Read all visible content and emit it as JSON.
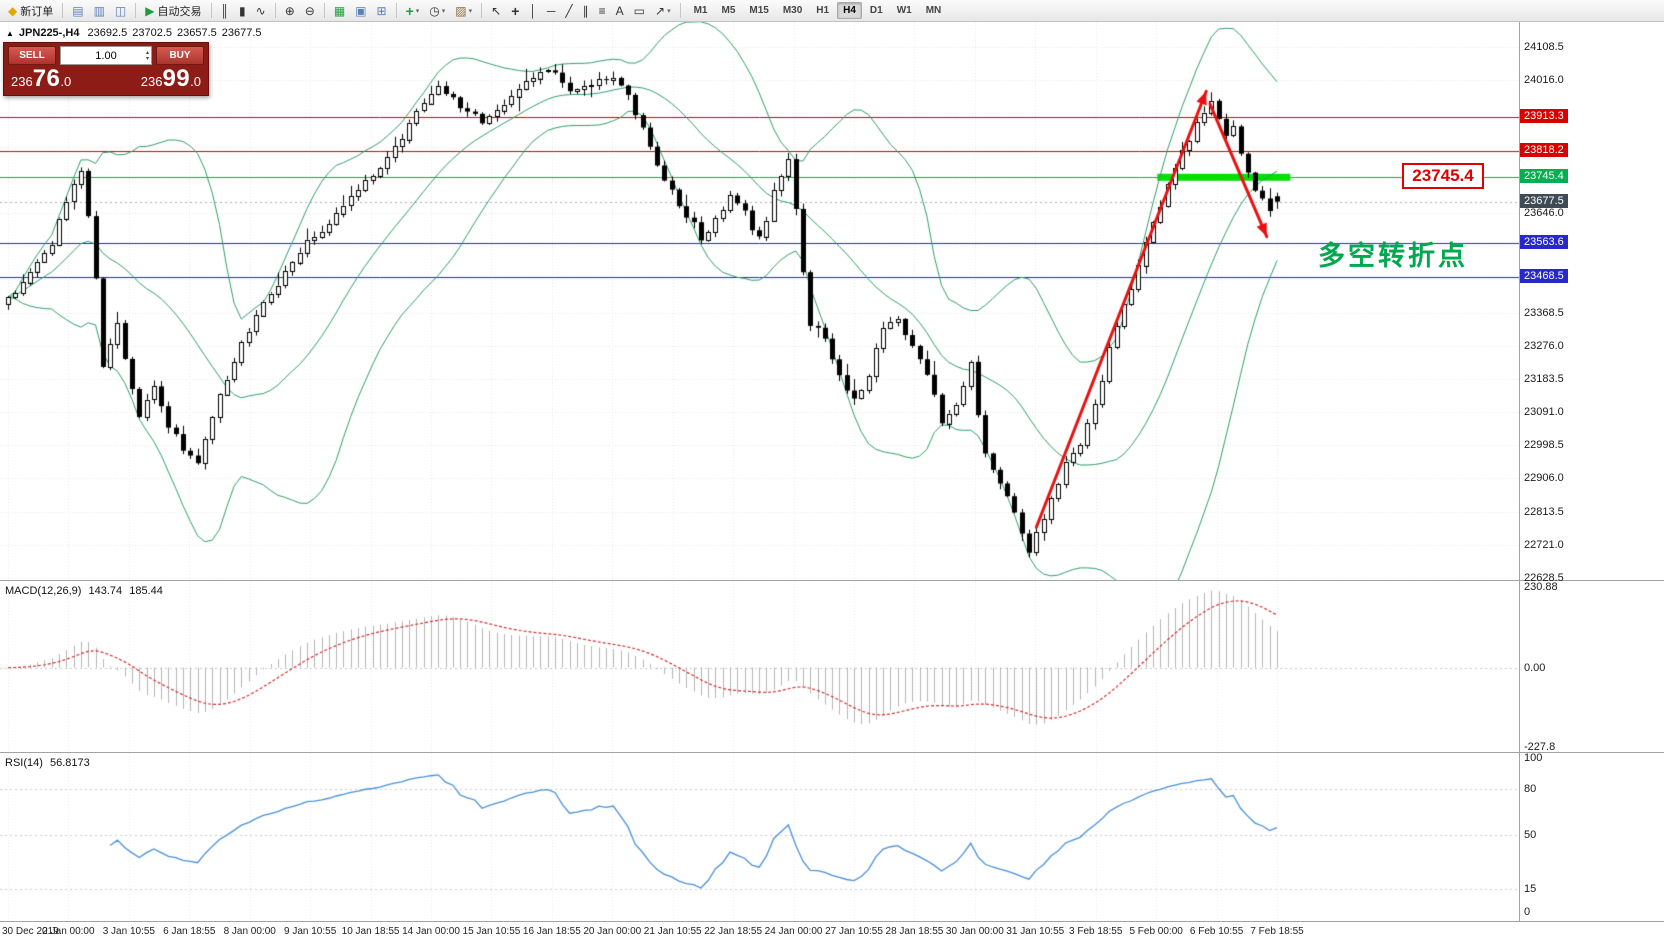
{
  "toolbar": {
    "groups": [
      {
        "items": [
          {
            "name": "new-order-button",
            "icon": "new-order-icon",
            "glyph": "◆",
            "color": "#e0a800",
            "label": "新订单"
          }
        ]
      },
      {
        "items": [
          {
            "name": "chart-window-button",
            "icon": "chart-window-icon",
            "glyph": "▤",
            "color": "#5a7fb5"
          },
          {
            "name": "profiles-button",
            "icon": "profiles-icon",
            "glyph": "▥",
            "color": "#5a7fb5"
          },
          {
            "name": "data-window-button",
            "icon": "data-window-icon",
            "glyph": "◫",
            "color": "#5a7fb5"
          }
        ]
      },
      {
        "items": [
          {
            "name": "auto-trading-button",
            "icon": "auto-trading-icon",
            "glyph": "▶",
            "color": "#1f9d3a",
            "label": "自动交易"
          }
        ]
      },
      {
        "items": [
          {
            "name": "bar-chart-button",
            "icon": "bar-chart-icon",
            "glyph": "║",
            "color": "#333333"
          },
          {
            "name": "candlestick-chart-button",
            "icon": "candlestick-chart-icon",
            "glyph": "▮",
            "color": "#333333"
          },
          {
            "name": "line-chart-button",
            "icon": "line-chart-icon",
            "glyph": "∿",
            "color": "#333333"
          }
        ]
      },
      {
        "items": [
          {
            "name": "zoom-in-button",
            "icon": "zoom-in-icon",
            "glyph": "⊕",
            "color": "#333333"
          },
          {
            "name": "zoom-out-button",
            "icon": "zoom-out-icon",
            "glyph": "⊖",
            "color": "#333333"
          }
        ]
      },
      {
        "items": [
          {
            "name": "tile-windows-button",
            "icon": "tile-windows-icon",
            "glyph": "▦",
            "color": "#1f9d3a"
          },
          {
            "name": "cascade-windows-button",
            "icon": "cascade-windows-icon",
            "glyph": "▣",
            "color": "#5a7fb5"
          },
          {
            "name": "arrange-windows-button",
            "icon": "arrange-windows-icon",
            "glyph": "⊞",
            "color": "#5a7fb5"
          }
        ]
      },
      {
        "items": [
          {
            "name": "indicators-button",
            "icon": "indicators-icon",
            "glyph": "+",
            "color": "#1f9d3a",
            "bold": true,
            "dropdown": true
          },
          {
            "name": "periods-button",
            "icon": "periods-icon",
            "glyph": "◷",
            "color": "#333333",
            "dropdown": true
          },
          {
            "name": "templates-button",
            "icon": "templates-icon",
            "glyph": "▨",
            "color": "#8a6d3b",
            "dropdown": true
          }
        ]
      },
      {
        "items": [
          {
            "name": "cursor-tool-button",
            "icon": "cursor-icon",
            "glyph": "↖",
            "color": "#333333"
          },
          {
            "name": "crosshair-tool-button",
            "icon": "crosshair-icon",
            "glyph": "+",
            "color": "#333333",
            "bold": true
          },
          {
            "name": "vertical-line-tool-button",
            "icon": "vertical-line-icon",
            "glyph": "│",
            "color": "#333333"
          },
          {
            "name": "horizontal-line-tool-button",
            "icon": "horizontal-line-icon",
            "glyph": "─",
            "color": "#333333"
          },
          {
            "name": "trendline-tool-button",
            "icon": "trendline-icon",
            "glyph": "╱",
            "color": "#333333"
          },
          {
            "name": "channel-tool-button",
            "icon": "channel-icon",
            "glyph": "∥",
            "color": "#333333"
          },
          {
            "name": "fibonacci-tool-button",
            "icon": "fibonacci-icon",
            "glyph": "≡",
            "color": "#333333"
          },
          {
            "name": "text-tool-button",
            "icon": "text-icon",
            "glyph": "A",
            "color": "#333333"
          },
          {
            "name": "label-tool-button",
            "icon": "label-icon",
            "glyph": "▭",
            "color": "#333333"
          },
          {
            "name": "arrows-tool-button",
            "icon": "arrows-icon",
            "glyph": "↗",
            "color": "#333333",
            "dropdown": true
          }
        ]
      }
    ],
    "timeframes": {
      "items": [
        "M1",
        "M5",
        "M15",
        "M30",
        "H1",
        "H4",
        "D1",
        "W1",
        "MN"
      ],
      "active": "H4"
    }
  },
  "symbol_header": {
    "toggle_icon": "▲",
    "symbol_period": "JPN225-,H4",
    "open": "23692.5",
    "high": "23702.5",
    "low": "23657.5",
    "close": "23677.5"
  },
  "trade_panel": {
    "sell_label": "SELL",
    "buy_label": "BUY",
    "volume": "1.00",
    "sell_price": "23676.0",
    "buy_price": "23699.0"
  },
  "price_axis": {
    "gridline_labels": [
      {
        "text": "24108.5",
        "price": 24108.5
      },
      {
        "text": "24016.0",
        "price": 24016.0
      },
      {
        "text": "23646.0",
        "price": 23646.0
      },
      {
        "text": "23368.5",
        "price": 23368.5
      },
      {
        "text": "23276.0",
        "price": 23276.0
      },
      {
        "text": "23183.5",
        "price": 23183.5
      },
      {
        "text": "23091.0",
        "price": 23091.0
      },
      {
        "text": "22998.5",
        "price": 22998.5
      },
      {
        "text": "22906.0",
        "price": 22906.0
      },
      {
        "text": "22813.5",
        "price": 22813.5
      },
      {
        "text": "22721.0",
        "price": 22721.0
      },
      {
        "text": "22628.5",
        "price": 22628.5
      }
    ],
    "level_tags": [
      {
        "text": "23913.3",
        "price": 23913.3,
        "type": "red"
      },
      {
        "text": "23818.2",
        "price": 23818.2,
        "type": "red"
      },
      {
        "text": "23745.4",
        "price": 23745.4,
        "type": "green"
      },
      {
        "text": "23677.5",
        "price": 23677.5,
        "type": "dark"
      },
      {
        "text": "23563.6",
        "price": 23563.6,
        "type": "blue"
      },
      {
        "text": "23468.5",
        "price": 23468.5,
        "type": "blue"
      }
    ]
  },
  "annotations": {
    "price_callout": "23745.4",
    "turning_point_label": "多空转折点"
  },
  "macd_panel": {
    "name": "MACD(12,26,9)",
    "value_main": "143.74",
    "value_signal": "185.44",
    "axis_labels": [
      {
        "text": "230.88",
        "value": 230.88
      },
      {
        "text": "0.00",
        "value": 0
      },
      {
        "text": "-227.8",
        "value": -227.8
      }
    ]
  },
  "rsi_panel": {
    "name": "RSI(14)",
    "value": "56.8173",
    "axis_labels": [
      {
        "text": "100",
        "value": 100
      },
      {
        "text": "80",
        "value": 80
      },
      {
        "text": "50",
        "value": 50
      },
      {
        "text": "15",
        "value": 15
      },
      {
        "text": "0",
        "value": 0
      }
    ],
    "levels": [
      80,
      50,
      15
    ]
  },
  "time_axis": {
    "labels": [
      "30 Dec 2019",
      "2 Jan 00:00",
      "3 Jan 10:55",
      "6 Jan 18:55",
      "8 Jan 00:00",
      "9 Jan 10:55",
      "10 Jan 18:55",
      "14 Jan 00:00",
      "15 Jan 10:55",
      "16 Jan 18:55",
      "20 Jan 00:00",
      "21 Jan 10:55",
      "22 Jan 18:55",
      "24 Jan 00:00",
      "27 Jan 10:55",
      "28 Jan 18:55",
      "30 Jan 00:00",
      "31 Jan 10:55",
      "3 Feb 18:55",
      "5 Feb 00:00",
      "6 Feb 10:55",
      "7 Feb 18:55"
    ]
  },
  "chart_data": {
    "type": "candlestick",
    "symbol": "JPN225-",
    "timeframe": "H4",
    "current_ohlc": {
      "open": 23692.5,
      "high": 23702.5,
      "low": 23657.5,
      "close": 23677.5
    },
    "price_axis_range": [
      22628.5,
      24108.5
    ],
    "grid_step": 92.5,
    "candle_count": 175,
    "close_anchors": [
      [
        0,
        23400
      ],
      [
        3,
        23470
      ],
      [
        6,
        23570
      ],
      [
        9,
        23720
      ],
      [
        10,
        23755
      ],
      [
        11,
        23640
      ],
      [
        12,
        23470
      ],
      [
        13,
        23220
      ],
      [
        14,
        23280
      ],
      [
        15,
        23330
      ],
      [
        16,
        23230
      ],
      [
        18,
        23080
      ],
      [
        20,
        23150
      ],
      [
        22,
        23060
      ],
      [
        24,
        22990
      ],
      [
        26,
        22960
      ],
      [
        28,
        23080
      ],
      [
        30,
        23180
      ],
      [
        32,
        23280
      ],
      [
        35,
        23400
      ],
      [
        38,
        23480
      ],
      [
        41,
        23560
      ],
      [
        44,
        23620
      ],
      [
        47,
        23680
      ],
      [
        50,
        23750
      ],
      [
        53,
        23830
      ],
      [
        56,
        23930
      ],
      [
        59,
        23990
      ],
      [
        62,
        23950
      ],
      [
        65,
        23900
      ],
      [
        68,
        23960
      ],
      [
        71,
        24010
      ],
      [
        74,
        24050
      ],
      [
        77,
        23990
      ],
      [
        80,
        24000
      ],
      [
        83,
        24025
      ],
      [
        85,
        23970
      ],
      [
        87,
        23880
      ],
      [
        89,
        23790
      ],
      [
        91,
        23700
      ],
      [
        93,
        23640
      ],
      [
        95,
        23580
      ],
      [
        97,
        23620
      ],
      [
        99,
        23700
      ],
      [
        101,
        23640
      ],
      [
        103,
        23570
      ],
      [
        105,
        23700
      ],
      [
        107,
        23790
      ],
      [
        108,
        23650
      ],
      [
        109,
        23480
      ],
      [
        110,
        23340
      ],
      [
        112,
        23300
      ],
      [
        114,
        23200
      ],
      [
        116,
        23120
      ],
      [
        118,
        23200
      ],
      [
        120,
        23320
      ],
      [
        122,
        23340
      ],
      [
        124,
        23280
      ],
      [
        126,
        23200
      ],
      [
        128,
        23060
      ],
      [
        130,
        23120
      ],
      [
        132,
        23220
      ],
      [
        133,
        23080
      ],
      [
        134,
        22980
      ],
      [
        136,
        22900
      ],
      [
        138,
        22820
      ],
      [
        140,
        22705
      ],
      [
        141,
        22745
      ],
      [
        143,
        22850
      ],
      [
        145,
        22940
      ],
      [
        147,
        23010
      ],
      [
        149,
        23120
      ],
      [
        151,
        23260
      ],
      [
        153,
        23390
      ],
      [
        155,
        23500
      ],
      [
        157,
        23620
      ],
      [
        159,
        23720
      ],
      [
        161,
        23810
      ],
      [
        163,
        23890
      ],
      [
        164,
        23935
      ],
      [
        165,
        23950
      ],
      [
        166,
        23900
      ],
      [
        167,
        23855
      ],
      [
        168,
        23880
      ],
      [
        169,
        23800
      ],
      [
        170,
        23760
      ],
      [
        171,
        23700
      ],
      [
        172,
        23690
      ],
      [
        173,
        23660
      ],
      [
        174,
        23677.5
      ]
    ],
    "bollinger": {
      "period": 20,
      "deviation": 2,
      "color": "#2e9e68"
    },
    "horizontal_lines": [
      {
        "price": 23913.3,
        "color": "#d90000",
        "style": "solid"
      },
      {
        "price": 23818.2,
        "color": "#d90000",
        "style": "solid"
      },
      {
        "price": 23745.4,
        "color": "#00b050",
        "style": "solid"
      },
      {
        "price": 23677.5,
        "color": "#a8b0b8",
        "style": "dotted"
      },
      {
        "price": 23563.6,
        "color": "#2727cc",
        "style": "solid"
      },
      {
        "price": 23468.5,
        "color": "#2727cc",
        "style": "solid"
      }
    ],
    "highlight_zone": {
      "price": 23745.4,
      "from_index": 158,
      "to_index": 175,
      "color": "#00e100",
      "thickness": 7
    },
    "trend_arrows": [
      {
        "from": [
          141,
          22770
        ],
        "to": [
          164.3,
          23985
        ],
        "color": "#e81010",
        "width": 3
      },
      {
        "from": [
          164.8,
          23950
        ],
        "to": [
          172.6,
          23580
        ],
        "color": "#e81010",
        "width": 3
      }
    ],
    "macd": {
      "fast": 12,
      "slow": 26,
      "signal": 9,
      "display_range": [
        -227.8,
        230.88
      ],
      "histogram_color": "#b4b4b4",
      "signal_color": "#d23030"
    },
    "rsi": {
      "period": 14,
      "line_color": "#4a90d9"
    }
  }
}
